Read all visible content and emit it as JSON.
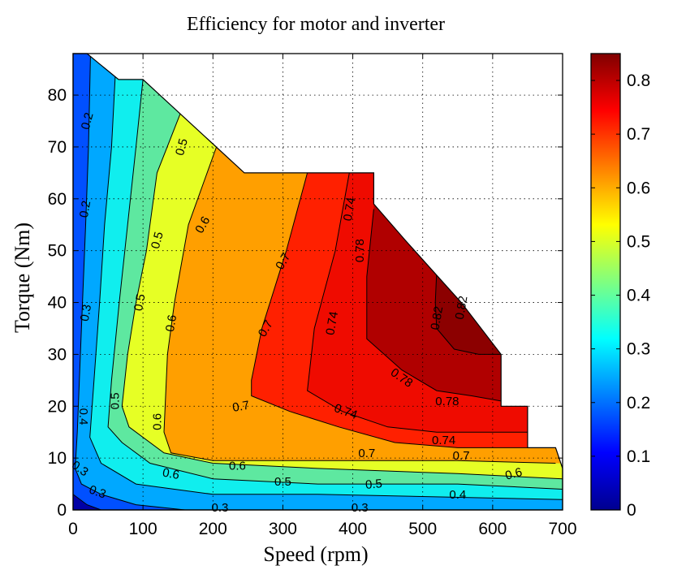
{
  "chart_data": {
    "type": "contourf",
    "title": "Efficiency for motor and inverter",
    "xlabel": "Speed (rpm)",
    "ylabel": "Torque (Nm)",
    "xlim": [
      0,
      700
    ],
    "ylim": [
      0,
      88
    ],
    "xticks": [
      0,
      100,
      200,
      300,
      400,
      500,
      600,
      700
    ],
    "yticks": [
      0,
      10,
      20,
      30,
      40,
      50,
      60,
      70,
      80
    ],
    "grid": true,
    "colorbar": {
      "range": [
        0,
        0.85
      ],
      "ticks": [
        0,
        0.1,
        0.2,
        0.3,
        0.4,
        0.5,
        0.6,
        0.7,
        0.8
      ],
      "tick_labels": [
        "0",
        "0.1",
        "0.2",
        "0.3",
        "0.4",
        "0.5",
        "0.6",
        "0.7",
        "0.8"
      ],
      "colormap": "jet"
    },
    "levels": [
      0,
      0.1,
      0.2,
      0.3,
      0.4,
      0.5,
      0.6,
      0.7,
      0.74,
      0.78,
      0.82
    ],
    "level_colors": [
      "#0000a6",
      "#0050ff",
      "#00a8ff",
      "#10eeee",
      "#5ee8a0",
      "#e6ff25",
      "#ff9f00",
      "#ff2000",
      "#ef0b00",
      "#b00000",
      "#8c0000"
    ],
    "max_torque_envelope": [
      [
        0,
        88
      ],
      [
        20,
        88
      ],
      [
        38,
        86
      ],
      [
        65,
        83
      ],
      [
        100,
        83
      ],
      [
        245,
        65
      ],
      [
        430,
        65
      ],
      [
        430,
        59
      ],
      [
        475,
        52
      ],
      [
        515,
        46
      ],
      [
        555,
        40
      ],
      [
        612,
        30
      ],
      [
        612,
        20
      ],
      [
        650,
        20
      ],
      [
        650,
        12
      ],
      [
        690,
        12
      ],
      [
        700,
        8
      ],
      [
        700,
        0
      ],
      [
        0,
        0
      ]
    ],
    "contours": [
      {
        "level": 0.1,
        "points": [
          [
            0,
            3
          ],
          [
            20,
            1
          ],
          [
            40,
            0
          ]
        ]
      },
      {
        "level": 0.2,
        "points": [
          [
            25,
            88
          ],
          [
            22,
            70
          ],
          [
            18,
            55
          ],
          [
            12,
            35
          ],
          [
            6,
            15
          ],
          [
            3,
            8
          ],
          [
            12,
            5
          ],
          [
            40,
            3
          ],
          [
            90,
            1
          ],
          [
            160,
            0
          ]
        ]
      },
      {
        "level": 0.3,
        "points": [
          [
            62,
            88
          ],
          [
            55,
            70
          ],
          [
            45,
            55
          ],
          [
            38,
            40
          ],
          [
            30,
            25
          ],
          [
            24,
            14
          ],
          [
            40,
            9
          ],
          [
            90,
            5
          ],
          [
            200,
            3
          ],
          [
            350,
            3
          ],
          [
            700,
            2
          ]
        ]
      },
      {
        "level": 0.4,
        "points": [
          [
            100,
            83
          ],
          [
            90,
            70
          ],
          [
            78,
            55
          ],
          [
            66,
            40
          ],
          [
            55,
            25
          ],
          [
            50,
            16
          ],
          [
            70,
            13
          ],
          [
            110,
            9
          ],
          [
            200,
            6
          ],
          [
            350,
            5
          ],
          [
            550,
            5
          ],
          [
            700,
            4
          ]
        ]
      },
      {
        "level": 0.5,
        "points": [
          [
            155,
            77
          ],
          [
            120,
            65
          ],
          [
            105,
            50
          ],
          [
            90,
            40
          ],
          [
            78,
            30
          ],
          [
            70,
            20
          ],
          [
            80,
            16
          ],
          [
            130,
            11
          ],
          [
            200,
            9
          ],
          [
            350,
            8
          ],
          [
            550,
            7
          ],
          [
            700,
            6
          ]
        ]
      },
      {
        "level": 0.6,
        "points": [
          [
            205,
            70
          ],
          [
            165,
            55
          ],
          [
            145,
            40
          ],
          [
            135,
            30
          ],
          [
            130,
            15
          ],
          [
            140,
            11
          ],
          [
            200,
            9.5
          ],
          [
            350,
            9.5
          ],
          [
            550,
            9.5
          ],
          [
            690,
            9
          ]
        ]
      },
      {
        "level": 0.7,
        "points": [
          [
            335,
            65
          ],
          [
            305,
            50
          ],
          [
            270,
            35
          ],
          [
            255,
            25
          ],
          [
            255,
            22
          ],
          [
            310,
            19
          ],
          [
            380,
            16
          ],
          [
            460,
            13
          ],
          [
            550,
            12
          ],
          [
            650,
            12
          ]
        ]
      },
      {
        "level": 0.74,
        "points": [
          [
            395,
            65
          ],
          [
            375,
            50
          ],
          [
            345,
            35
          ],
          [
            335,
            23
          ],
          [
            385,
            19
          ],
          [
            450,
            16
          ],
          [
            520,
            15
          ],
          [
            590,
            15
          ],
          [
            650,
            15
          ]
        ]
      },
      {
        "level": 0.78,
        "points": [
          [
            430,
            58
          ],
          [
            420,
            45
          ],
          [
            420,
            33
          ],
          [
            470,
            27
          ],
          [
            520,
            23
          ],
          [
            570,
            22
          ],
          [
            612,
            21
          ]
        ]
      },
      {
        "level": 0.82,
        "points": [
          [
            520,
            46
          ],
          [
            518,
            40
          ],
          [
            520,
            35
          ],
          [
            545,
            31
          ],
          [
            580,
            30
          ],
          [
            612,
            30
          ]
        ]
      }
    ],
    "contour_labels": [
      {
        "text": "0.2",
        "x": 20,
        "y": 75,
        "rotate": -75
      },
      {
        "text": "0.2",
        "x": 17,
        "y": 58,
        "rotate": -80
      },
      {
        "text": "0.3",
        "x": 18,
        "y": 38,
        "rotate": -80
      },
      {
        "text": "0.4",
        "x": 15,
        "y": 18,
        "rotate": 90
      },
      {
        "text": "0.3",
        "x": 10,
        "y": 8,
        "rotate": 35
      },
      {
        "text": "0.3",
        "x": 35,
        "y": 3.5,
        "rotate": 20
      },
      {
        "text": "0.3",
        "x": 210,
        "y": 0.5,
        "rotate": 0
      },
      {
        "text": "0.3",
        "x": 410,
        "y": 0.5,
        "rotate": 0
      },
      {
        "text": "0.5",
        "x": 155,
        "y": 70,
        "rotate": -75
      },
      {
        "text": "0.5",
        "x": 120,
        "y": 52,
        "rotate": -75
      },
      {
        "text": "0.5",
        "x": 95,
        "y": 40,
        "rotate": -80
      },
      {
        "text": "0.5",
        "x": 60,
        "y": 21,
        "rotate": -90
      },
      {
        "text": "0.5",
        "x": 300,
        "y": 5.5,
        "rotate": 0
      },
      {
        "text": "0.5",
        "x": 430,
        "y": 5,
        "rotate": -5
      },
      {
        "text": "0.4",
        "x": 550,
        "y": 3,
        "rotate": 0
      },
      {
        "text": "0.6",
        "x": 185,
        "y": 55,
        "rotate": -60
      },
      {
        "text": "0.6",
        "x": 140,
        "y": 36,
        "rotate": -80
      },
      {
        "text": "0.6",
        "x": 120,
        "y": 17,
        "rotate": -90
      },
      {
        "text": "0.6",
        "x": 140,
        "y": 7,
        "rotate": 10
      },
      {
        "text": "0.6",
        "x": 235,
        "y": 8.5,
        "rotate": 0
      },
      {
        "text": "0.6",
        "x": 630,
        "y": 7,
        "rotate": -15
      },
      {
        "text": "0.7",
        "x": 275,
        "y": 35,
        "rotate": -60
      },
      {
        "text": "0.7",
        "x": 300,
        "y": 48,
        "rotate": -60
      },
      {
        "text": "0.7",
        "x": 240,
        "y": 20,
        "rotate": -10
      },
      {
        "text": "0.7",
        "x": 420,
        "y": 11,
        "rotate": 0
      },
      {
        "text": "0.7",
        "x": 555,
        "y": 10.5,
        "rotate": 0
      },
      {
        "text": "0.74",
        "x": 370,
        "y": 36,
        "rotate": -80
      },
      {
        "text": "0.74",
        "x": 395,
        "y": 58,
        "rotate": -80
      },
      {
        "text": "0.74",
        "x": 390,
        "y": 19,
        "rotate": 20
      },
      {
        "text": "0.74",
        "x": 530,
        "y": 13.5,
        "rotate": 0
      },
      {
        "text": "0.78",
        "x": 410,
        "y": 50,
        "rotate": -90
      },
      {
        "text": "0.78",
        "x": 470,
        "y": 25.5,
        "rotate": 35
      },
      {
        "text": "0.78",
        "x": 535,
        "y": 21,
        "rotate": 0
      },
      {
        "text": "0.82",
        "x": 520,
        "y": 37,
        "rotate": -80
      },
      {
        "text": "0.82",
        "x": 555,
        "y": 39,
        "rotate": -80
      }
    ]
  }
}
